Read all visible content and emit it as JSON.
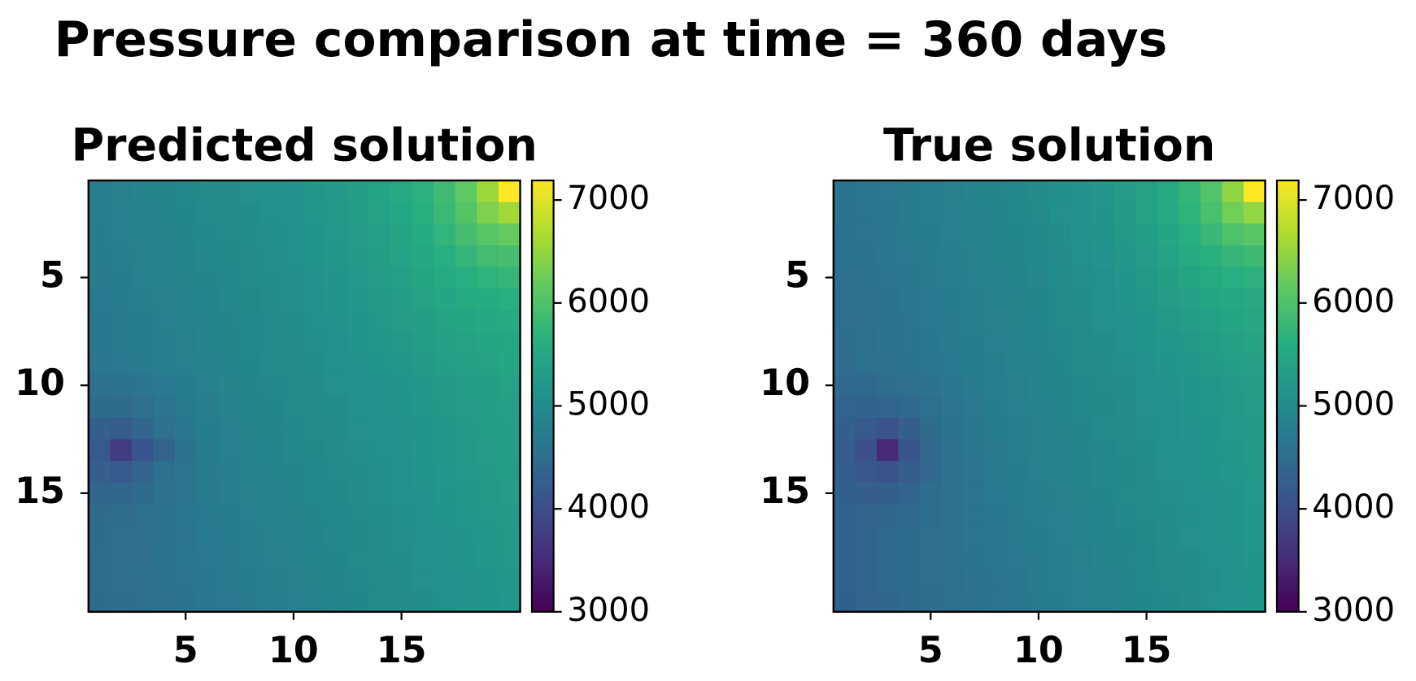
{
  "title": "Pressure comparison at time = 360 days",
  "chart_data": [
    {
      "type": "heatmap",
      "title": "Predicted solution",
      "colormap": "viridis",
      "x": [
        1,
        2,
        3,
        4,
        5,
        6,
        7,
        8,
        9,
        10,
        11,
        12,
        13,
        14,
        15,
        16,
        17,
        18,
        19,
        20
      ],
      "y": [
        1,
        2,
        3,
        4,
        5,
        6,
        7,
        8,
        9,
        10,
        11,
        12,
        13,
        14,
        15,
        16,
        17,
        18,
        19,
        20
      ],
      "xlim": [
        0.5,
        20.5
      ],
      "ylim": [
        20.5,
        0.5
      ],
      "xticks": [
        5,
        10,
        15
      ],
      "yticks": [
        5,
        10,
        15
      ],
      "clim": [
        3000,
        7190
      ],
      "cticks": [
        3000,
        4000,
        5000,
        6000,
        7000
      ],
      "values": [
        [
          4790,
          4830,
          4870,
          4910,
          4950,
          4990,
          5030,
          5070,
          5110,
          5150,
          5220,
          5280,
          5340,
          5420,
          5520,
          5660,
          5850,
          6140,
          6560,
          7200
        ],
        [
          4770,
          4810,
          4850,
          4890,
          4930,
          4970,
          5010,
          5050,
          5090,
          5130,
          5200,
          5250,
          5320,
          5400,
          5490,
          5630,
          5800,
          6050,
          6360,
          6580
        ],
        [
          4760,
          4800,
          4840,
          4880,
          4920,
          4960,
          5000,
          5040,
          5080,
          5120,
          5180,
          5240,
          5300,
          5370,
          5460,
          5580,
          5720,
          5900,
          6080,
          6180
        ],
        [
          4740,
          4780,
          4820,
          4860,
          4900,
          4940,
          4980,
          5020,
          5060,
          5100,
          5160,
          5220,
          5270,
          5340,
          5420,
          5510,
          5620,
          5740,
          5860,
          5920
        ],
        [
          4720,
          4760,
          4800,
          4840,
          4880,
          4920,
          4960,
          5000,
          5040,
          5080,
          5140,
          5190,
          5240,
          5300,
          5370,
          5450,
          5530,
          5620,
          5700,
          5750
        ],
        [
          4700,
          4740,
          4780,
          4820,
          4860,
          4900,
          4940,
          4980,
          5020,
          5060,
          5120,
          5160,
          5210,
          5270,
          5330,
          5390,
          5460,
          5520,
          5580,
          5630
        ],
        [
          4680,
          4720,
          4760,
          4800,
          4840,
          4880,
          4920,
          4960,
          5000,
          5040,
          5090,
          5140,
          5190,
          5240,
          5290,
          5340,
          5400,
          5450,
          5510,
          5550
        ],
        [
          4670,
          4710,
          4750,
          4790,
          4830,
          4870,
          4910,
          4950,
          4990,
          5030,
          5080,
          5120,
          5170,
          5220,
          5260,
          5310,
          5360,
          5410,
          5460,
          5500
        ],
        [
          4650,
          4690,
          4730,
          4770,
          4810,
          4850,
          4890,
          4930,
          4970,
          5010,
          5050,
          5090,
          5140,
          5190,
          5230,
          5280,
          5330,
          5370,
          5410,
          5450
        ],
        [
          4550,
          4580,
          4630,
          4690,
          4760,
          4810,
          4870,
          4910,
          4950,
          4990,
          5030,
          5070,
          5110,
          5150,
          5190,
          5230,
          5270,
          5310,
          5350,
          5390
        ],
        [
          4450,
          4460,
          4530,
          4630,
          4710,
          4780,
          4840,
          4890,
          4930,
          4970,
          5010,
          5050,
          5090,
          5130,
          5170,
          5210,
          5250,
          5290,
          5330,
          5370
        ],
        [
          4290,
          4210,
          4370,
          4550,
          4670,
          4750,
          4810,
          4870,
          4910,
          4950,
          4990,
          5030,
          5070,
          5110,
          5150,
          5190,
          5230,
          5270,
          5310,
          5350
        ],
        [
          4160,
          3720,
          4100,
          4350,
          4600,
          4740,
          4800,
          4860,
          4900,
          4940,
          4980,
          5020,
          5060,
          5100,
          5140,
          5180,
          5220,
          5260,
          5300,
          5340
        ],
        [
          4260,
          4180,
          4340,
          4520,
          4640,
          4720,
          4780,
          4840,
          4880,
          4920,
          4960,
          5000,
          5040,
          5080,
          5120,
          5160,
          5200,
          5240,
          5280,
          5320
        ],
        [
          4380,
          4390,
          4460,
          4560,
          4640,
          4710,
          4770,
          4820,
          4860,
          4900,
          4940,
          4980,
          5020,
          5060,
          5100,
          5140,
          5180,
          5220,
          5260,
          5300
        ],
        [
          4440,
          4470,
          4520,
          4580,
          4650,
          4700,
          4760,
          4800,
          4840,
          4880,
          4920,
          4960,
          5000,
          5040,
          5080,
          5120,
          5160,
          5200,
          5240,
          5280
        ],
        [
          4460,
          4500,
          4540,
          4590,
          4640,
          4700,
          4740,
          4780,
          4820,
          4860,
          4900,
          4940,
          4980,
          5020,
          5060,
          5100,
          5140,
          5180,
          5220,
          5260
        ],
        [
          4470,
          4510,
          4550,
          4600,
          4650,
          4690,
          4730,
          4770,
          4810,
          4850,
          4890,
          4930,
          4970,
          5010,
          5050,
          5090,
          5130,
          5170,
          5210,
          5250
        ],
        [
          4470,
          4510,
          4550,
          4590,
          4630,
          4670,
          4710,
          4750,
          4790,
          4830,
          4870,
          4910,
          4950,
          4990,
          5030,
          5070,
          5110,
          5150,
          5190,
          5230
        ],
        [
          4450,
          4490,
          4530,
          4570,
          4610,
          4650,
          4690,
          4730,
          4770,
          4810,
          4850,
          4890,
          4930,
          4970,
          5010,
          5050,
          5090,
          5130,
          5170,
          5210
        ]
      ]
    },
    {
      "type": "heatmap",
      "title": "True solution",
      "colormap": "viridis",
      "x": [
        1,
        2,
        3,
        4,
        5,
        6,
        7,
        8,
        9,
        10,
        11,
        12,
        13,
        14,
        15,
        16,
        17,
        18,
        19,
        20
      ],
      "y": [
        1,
        2,
        3,
        4,
        5,
        6,
        7,
        8,
        9,
        10,
        11,
        12,
        13,
        14,
        15,
        16,
        17,
        18,
        19,
        20
      ],
      "xlim": [
        0.5,
        20.5
      ],
      "ylim": [
        20.5,
        0.5
      ],
      "xticks": [
        5,
        10,
        15
      ],
      "yticks": [
        5,
        10,
        15
      ],
      "clim": [
        3000,
        7190
      ],
      "cticks": [
        3000,
        4000,
        5000,
        6000,
        7000
      ],
      "values": [
        [
          4600,
          4650,
          4690,
          4740,
          4780,
          4830,
          4870,
          4920,
          4960,
          5010,
          5080,
          5140,
          5210,
          5300,
          5400,
          5550,
          5750,
          6030,
          6460,
          7200
        ],
        [
          4590,
          4630,
          4680,
          4720,
          4770,
          4810,
          4860,
          4900,
          4950,
          4990,
          5070,
          5130,
          5190,
          5280,
          5380,
          5520,
          5700,
          5950,
          6270,
          6490
        ],
        [
          4570,
          4620,
          4660,
          4710,
          4750,
          4800,
          4840,
          4890,
          4930,
          4980,
          5050,
          5110,
          5170,
          5250,
          5340,
          5460,
          5610,
          5790,
          5980,
          6090
        ],
        [
          4560,
          4600,
          4650,
          4690,
          4740,
          4780,
          4830,
          4870,
          4920,
          4960,
          5030,
          5090,
          5150,
          5220,
          5300,
          5400,
          5520,
          5640,
          5760,
          5830
        ],
        [
          4540,
          4590,
          4630,
          4680,
          4720,
          4770,
          4810,
          4860,
          4900,
          4950,
          5010,
          5060,
          5120,
          5190,
          5260,
          5340,
          5430,
          5520,
          5610,
          5660
        ],
        [
          4520,
          4570,
          4610,
          4660,
          4700,
          4750,
          4790,
          4840,
          4880,
          4930,
          4990,
          5040,
          5100,
          5160,
          5220,
          5290,
          5360,
          5430,
          5500,
          5550
        ],
        [
          4510,
          4550,
          4600,
          4640,
          4690,
          4730,
          4780,
          4820,
          4870,
          4910,
          4970,
          5020,
          5070,
          5130,
          5190,
          5250,
          5310,
          5370,
          5420,
          5470
        ],
        [
          4490,
          4540,
          4580,
          4630,
          4670,
          4720,
          4760,
          4810,
          4850,
          4900,
          4950,
          5000,
          5050,
          5100,
          5160,
          5210,
          5260,
          5320,
          5370,
          5420
        ],
        [
          4480,
          4520,
          4570,
          4610,
          4660,
          4700,
          4750,
          4790,
          4840,
          4880,
          4930,
          4970,
          5030,
          5080,
          5130,
          5180,
          5230,
          5280,
          5330,
          5370
        ],
        [
          4410,
          4430,
          4470,
          4520,
          4590,
          4660,
          4720,
          4780,
          4820,
          4870,
          4910,
          4960,
          5000,
          5050,
          5090,
          5140,
          5180,
          5230,
          5270,
          5320
        ],
        [
          4350,
          4330,
          4350,
          4420,
          4530,
          4620,
          4690,
          4760,
          4800,
          4850,
          4890,
          4940,
          4980,
          5030,
          5070,
          5120,
          5160,
          5210,
          5250,
          5300
        ],
        [
          4270,
          4170,
          4080,
          4260,
          4450,
          4580,
          4670,
          4740,
          4790,
          4830,
          4880,
          4920,
          4970,
          5010,
          5060,
          5100,
          5150,
          5190,
          5240,
          5280
        ],
        [
          4220,
          4020,
          3500,
          4110,
          4400,
          4560,
          4650,
          4710,
          4770,
          4820,
          4860,
          4910,
          4950,
          5000,
          5040,
          5090,
          5130,
          5180,
          5220,
          5270
        ],
        [
          4240,
          4130,
          4050,
          4220,
          4420,
          4550,
          4630,
          4710,
          4760,
          4800,
          4850,
          4890,
          4940,
          4980,
          5030,
          5070,
          5120,
          5160,
          5210,
          5250
        ],
        [
          4290,
          4270,
          4280,
          4360,
          4470,
          4560,
          4630,
          4700,
          4740,
          4790,
          4830,
          4880,
          4920,
          4970,
          5010,
          5060,
          5100,
          5150,
          5190,
          5240
        ],
        [
          4310,
          4340,
          4370,
          4430,
          4490,
          4560,
          4620,
          4680,
          4720,
          4770,
          4810,
          4860,
          4900,
          4950,
          4990,
          5040,
          5080,
          5130,
          5170,
          5220
        ],
        [
          4320,
          4360,
          4400,
          4450,
          4500,
          4560,
          4620,
          4660,
          4710,
          4750,
          4800,
          4840,
          4890,
          4930,
          4980,
          5020,
          5070,
          5110,
          5160,
          5200
        ],
        [
          4320,
          4360,
          4410,
          4460,
          4500,
          4560,
          4600,
          4650,
          4690,
          4740,
          4780,
          4830,
          4870,
          4920,
          4960,
          5010,
          5050,
          5100,
          5140,
          5190
        ],
        [
          4320,
          4360,
          4410,
          4450,
          4500,
          4540,
          4590,
          4630,
          4680,
          4720,
          4770,
          4810,
          4860,
          4900,
          4950,
          4990,
          5040,
          5080,
          5130,
          5170
        ],
        [
          4300,
          4350,
          4390,
          4440,
          4480,
          4530,
          4570,
          4620,
          4660,
          4710,
          4750,
          4800,
          4840,
          4890,
          4930,
          4980,
          5020,
          5070,
          5110,
          5160
        ]
      ]
    }
  ]
}
